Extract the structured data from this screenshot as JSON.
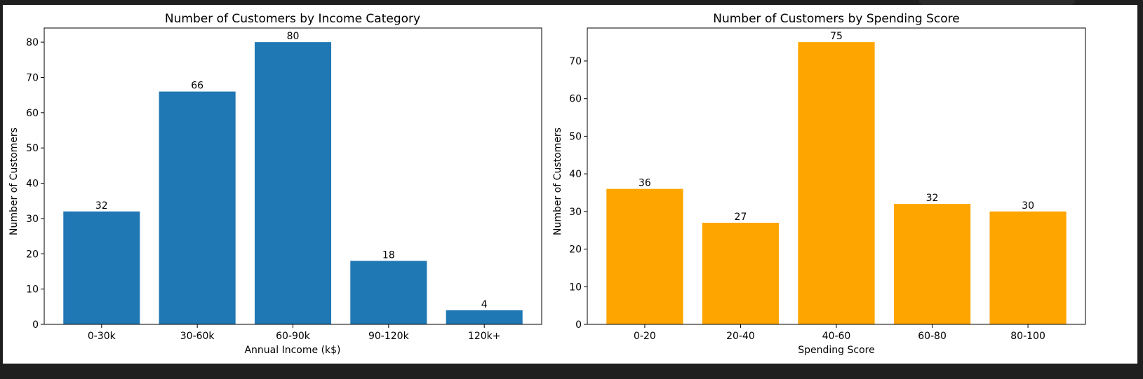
{
  "chart_data": [
    {
      "type": "bar",
      "title": "Number of Customers by Income Category",
      "xlabel": "Annual Income (k$)",
      "ylabel": "Number of Customers",
      "categories": [
        "0-30k",
        "30-60k",
        "60-90k",
        "90-120k",
        "120k+"
      ],
      "values": [
        32,
        66,
        80,
        18,
        4
      ],
      "ylim": [
        0,
        84
      ],
      "yticks": [
        0,
        10,
        20,
        30,
        40,
        50,
        60,
        70,
        80
      ],
      "color": "#1f77b4",
      "grid": false
    },
    {
      "type": "bar",
      "title": "Number of Customers by Spending Score",
      "xlabel": "Spending Score",
      "ylabel": "Number of Customers",
      "categories": [
        "0-20",
        "20-40",
        "40-60",
        "60-80",
        "80-100"
      ],
      "values": [
        36,
        27,
        75,
        32,
        30
      ],
      "ylim": [
        0,
        78.75
      ],
      "yticks": [
        0,
        10,
        20,
        30,
        40,
        50,
        60,
        70
      ],
      "color": "#ffa500",
      "grid": false
    }
  ]
}
